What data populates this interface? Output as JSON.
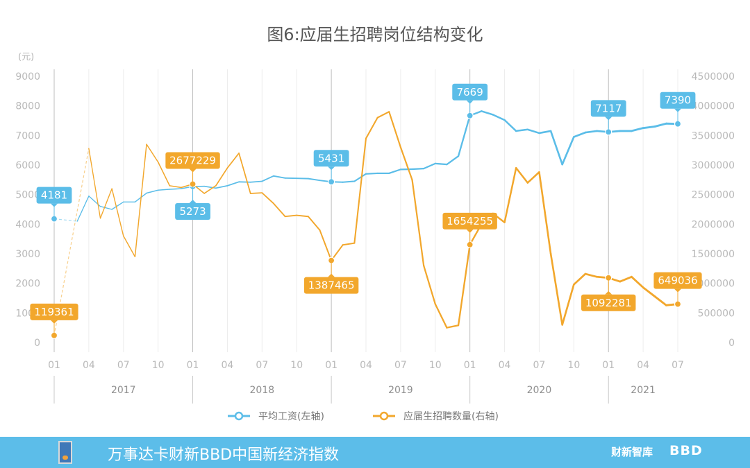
{
  "chart_data": {
    "type": "line",
    "title": "图6:应届生招聘岗位结构变化",
    "left_unit": "(元)",
    "left_axis": {
      "ticks": [
        0,
        1000,
        2000,
        3000,
        4000,
        5000,
        6000,
        7000,
        8000,
        9000
      ],
      "range": [
        0,
        9000
      ]
    },
    "right_axis": {
      "ticks": [
        "0",
        "500000",
        "1000000",
        "1500000",
        "2000000",
        "2500000",
        "3000000",
        "3500000",
        "4000000",
        "4500000"
      ],
      "range": [
        0,
        4500000
      ]
    },
    "x_tick_labels": [
      "01",
      "04",
      "07",
      "10",
      "01",
      "04",
      "07",
      "10",
      "01",
      "04",
      "07",
      "10",
      "01",
      "04",
      "07",
      "10",
      "01",
      "04",
      "07"
    ],
    "years": [
      "2017",
      "2018",
      "2019",
      "2020",
      "2021"
    ],
    "series": [
      {
        "name": "平均工资(左轴)",
        "axis": "left",
        "color": "#5bbde8",
        "months": [
          "2017-01",
          "2017-03",
          "2017-04",
          "2017-05",
          "2017-06",
          "2017-07",
          "2017-08",
          "2017-09",
          "2017-10",
          "2017-11",
          "2017-12",
          "2018-01",
          "2018-02",
          "2018-03",
          "2018-04",
          "2018-05",
          "2018-06",
          "2018-07",
          "2018-08",
          "2018-09",
          "2018-10",
          "2018-11",
          "2018-12",
          "2019-01",
          "2019-02",
          "2019-03",
          "2019-04",
          "2019-05",
          "2019-06",
          "2019-07",
          "2019-08",
          "2019-09",
          "2019-10",
          "2019-11",
          "2019-12",
          "2020-01",
          "2020-02",
          "2020-03",
          "2020-04",
          "2020-05",
          "2020-06",
          "2020-07",
          "2020-08",
          "2020-09",
          "2020-10",
          "2020-11",
          "2020-12",
          "2021-01",
          "2021-02",
          "2021-03",
          "2021-04",
          "2021-05",
          "2021-06",
          "2021-07"
        ],
        "values": [
          4181,
          4100,
          4950,
          4600,
          4500,
          4750,
          4750,
          5050,
          5150,
          5180,
          5200,
          5273,
          5280,
          5220,
          5300,
          5430,
          5420,
          5450,
          5630,
          5560,
          5550,
          5540,
          5480,
          5431,
          5420,
          5450,
          5700,
          5720,
          5720,
          5850,
          5860,
          5880,
          6050,
          6020,
          6300,
          7669,
          7820,
          7700,
          7520,
          7150,
          7200,
          7080,
          7150,
          6020,
          6950,
          7100,
          7150,
          7117,
          7150,
          7150,
          7250,
          7300,
          7400,
          7390
        ],
        "labels": [
          {
            "month": "2017-01",
            "text": "4181",
            "pos": "above"
          },
          {
            "month": "2018-01",
            "text": "5273",
            "pos": "below"
          },
          {
            "month": "2019-01",
            "text": "5431",
            "pos": "above"
          },
          {
            "month": "2020-01",
            "text": "7669",
            "pos": "above"
          },
          {
            "month": "2021-01",
            "text": "7117",
            "pos": "above"
          },
          {
            "month": "2021-07",
            "text": "7390",
            "pos": "above"
          }
        ]
      },
      {
        "name": "应届生招聘数量(右轴)",
        "axis": "right",
        "color": "#f2a72c",
        "months": [
          "2017-01",
          "2017-04",
          "2017-05",
          "2017-06",
          "2017-07",
          "2017-08",
          "2017-09",
          "2017-10",
          "2017-11",
          "2017-12",
          "2018-01",
          "2018-02",
          "2018-03",
          "2018-04",
          "2018-05",
          "2018-06",
          "2018-07",
          "2018-08",
          "2018-09",
          "2018-10",
          "2018-11",
          "2018-12",
          "2019-01",
          "2019-02",
          "2019-03",
          "2019-04",
          "2019-05",
          "2019-06",
          "2019-07",
          "2019-08",
          "2019-09",
          "2019-10",
          "2019-11",
          "2019-12",
          "2020-01",
          "2020-02",
          "2020-03",
          "2020-04",
          "2020-05",
          "2020-06",
          "2020-07",
          "2020-08",
          "2020-09",
          "2020-10",
          "2020-11",
          "2020-12",
          "2021-01",
          "2021-02",
          "2021-03",
          "2021-04",
          "2021-05",
          "2021-06",
          "2021-07"
        ],
        "values": [
          119361,
          3280000,
          2100000,
          2600000,
          1800000,
          1450000,
          3350000,
          3050000,
          2650000,
          2620000,
          2677229,
          2520000,
          2650000,
          2950000,
          3200000,
          2520000,
          2530000,
          2350000,
          2130000,
          2150000,
          2130000,
          1900000,
          1387465,
          1650000,
          1680000,
          3450000,
          3800000,
          3900000,
          3300000,
          2750000,
          1300000,
          650000,
          250000,
          290000,
          1654255,
          2000000,
          2180000,
          2030000,
          2950000,
          2700000,
          2880000,
          1500000,
          300000,
          980000,
          1160000,
          1110000,
          1092281,
          1030000,
          1110000,
          930000,
          780000,
          630000,
          649036
        ],
        "labels": [
          {
            "month": "2017-01",
            "text": "119361",
            "pos": "above"
          },
          {
            "month": "2018-01",
            "text": "2677229",
            "pos": "above"
          },
          {
            "month": "2019-01",
            "text": "1387465",
            "pos": "below"
          },
          {
            "month": "2020-01",
            "text": "1654255",
            "pos": "above"
          },
          {
            "month": "2021-01",
            "text": "1092281",
            "pos": "below"
          },
          {
            "month": "2021-07",
            "text": "649036",
            "pos": "above"
          }
        ]
      }
    ],
    "grid": true,
    "legend_position": "bottom"
  },
  "footer": {
    "title": "万事达卡财新BBD中国新经济指数",
    "brand_cn": "财新智库",
    "brand_en": "BBD"
  }
}
